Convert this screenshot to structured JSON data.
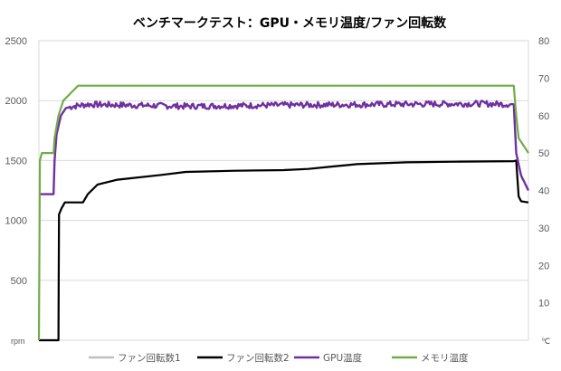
{
  "chart_data": {
    "type": "line",
    "title": "ベンチマークテスト：GPU・メモリ温度/ファン回転数",
    "left_axis": {
      "unit": "rpm",
      "ylim": [
        0,
        2500
      ],
      "ticks": [
        0,
        500,
        1000,
        1500,
        2000,
        2500
      ]
    },
    "right_axis": {
      "unit": "℃",
      "ylim": [
        0,
        80
      ],
      "ticks": [
        0,
        10,
        20,
        30,
        40,
        50,
        60,
        70,
        80
      ]
    },
    "grid": true,
    "legend_position": "bottom",
    "x_domain": [
      0,
      1
    ],
    "series": [
      {
        "name": "ファン回転数1",
        "axis": "left",
        "color": "#bfbfbf",
        "points": [
          [
            0.0,
            0
          ],
          [
            0.037,
            0
          ],
          [
            0.04,
            0
          ],
          [
            0.041,
            1050
          ],
          [
            0.046,
            1100
          ],
          [
            0.053,
            1150
          ],
          [
            0.09,
            1150
          ],
          [
            0.1,
            1220
          ],
          [
            0.12,
            1300
          ],
          [
            0.16,
            1340
          ],
          [
            0.25,
            1380
          ],
          [
            0.3,
            1405
          ],
          [
            0.4,
            1415
          ],
          [
            0.5,
            1420
          ],
          [
            0.55,
            1430
          ],
          [
            0.6,
            1450
          ],
          [
            0.65,
            1470
          ],
          [
            0.75,
            1485
          ],
          [
            0.85,
            1490
          ],
          [
            0.97,
            1495
          ],
          [
            0.975,
            1500
          ],
          [
            0.98,
            1200
          ],
          [
            0.985,
            1160
          ],
          [
            1.0,
            1150
          ]
        ]
      },
      {
        "name": "ファン回転数2",
        "axis": "left",
        "color": "#000000",
        "points": [
          [
            0.0,
            0
          ],
          [
            0.037,
            0
          ],
          [
            0.04,
            0
          ],
          [
            0.041,
            1050
          ],
          [
            0.046,
            1100
          ],
          [
            0.053,
            1150
          ],
          [
            0.09,
            1150
          ],
          [
            0.1,
            1220
          ],
          [
            0.12,
            1300
          ],
          [
            0.16,
            1340
          ],
          [
            0.25,
            1380
          ],
          [
            0.3,
            1405
          ],
          [
            0.4,
            1415
          ],
          [
            0.5,
            1420
          ],
          [
            0.55,
            1430
          ],
          [
            0.6,
            1450
          ],
          [
            0.65,
            1470
          ],
          [
            0.75,
            1485
          ],
          [
            0.85,
            1490
          ],
          [
            0.97,
            1495
          ],
          [
            0.975,
            1500
          ],
          [
            0.98,
            1200
          ],
          [
            0.985,
            1160
          ],
          [
            1.0,
            1150
          ]
        ]
      },
      {
        "name": "GPU温度",
        "axis": "right",
        "color": "#7030a0",
        "points": [
          [
            0.0,
            39
          ],
          [
            0.03,
            39
          ],
          [
            0.032,
            48
          ],
          [
            0.036,
            55
          ],
          [
            0.045,
            60
          ],
          [
            0.055,
            62
          ],
          [
            0.07,
            62.5
          ],
          [
            0.1,
            63
          ],
          [
            0.3,
            62.5
          ],
          [
            0.5,
            62.8
          ],
          [
            0.7,
            63
          ],
          [
            0.9,
            63.2
          ],
          [
            0.97,
            63
          ],
          [
            0.975,
            50
          ],
          [
            0.985,
            44
          ],
          [
            1.0,
            40
          ]
        ]
      },
      {
        "name": "メモリ温度",
        "axis": "right",
        "color": "#70ad47",
        "points": [
          [
            0.0,
            0
          ],
          [
            0.002,
            48
          ],
          [
            0.006,
            50
          ],
          [
            0.03,
            50
          ],
          [
            0.032,
            54
          ],
          [
            0.04,
            60
          ],
          [
            0.05,
            64
          ],
          [
            0.065,
            66
          ],
          [
            0.08,
            68
          ],
          [
            0.5,
            68
          ],
          [
            0.6,
            68
          ],
          [
            0.97,
            68
          ],
          [
            0.975,
            60
          ],
          [
            0.98,
            54
          ],
          [
            1.0,
            50
          ]
        ]
      }
    ]
  }
}
